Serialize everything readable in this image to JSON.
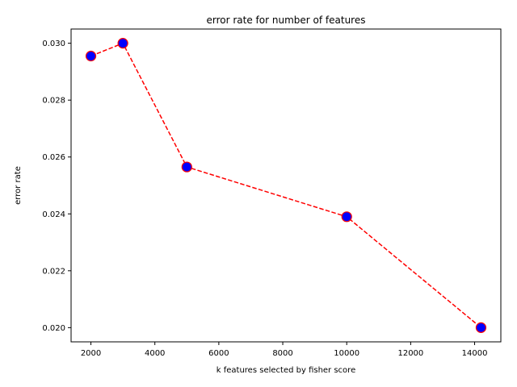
{
  "chart_data": {
    "type": "line",
    "title": "error rate for number of features",
    "xlabel": "k features selected by fisher score",
    "ylabel": "error rate",
    "xlim": [
      1380,
      14820
    ],
    "ylim": [
      0.0195,
      0.0305
    ],
    "xticks": [
      2000,
      4000,
      6000,
      8000,
      10000,
      12000,
      14000
    ],
    "xtick_labels": [
      "2000",
      "4000",
      "6000",
      "8000",
      "10000",
      "12000",
      "14000"
    ],
    "yticks": [
      0.02,
      0.022,
      0.024,
      0.026,
      0.028,
      0.03
    ],
    "ytick_labels": [
      "0.020",
      "0.022",
      "0.024",
      "0.026",
      "0.028",
      "0.030"
    ],
    "grid": false,
    "series": [
      {
        "x": [
          2000,
          3000,
          5000,
          10000,
          14200
        ],
        "y": [
          0.02955,
          0.03,
          0.02565,
          0.0239,
          0.02
        ],
        "line_color": "#ff0000",
        "line_style": "dashed",
        "marker_face": "#0000ff",
        "marker_edge": "#ff0000"
      }
    ]
  }
}
